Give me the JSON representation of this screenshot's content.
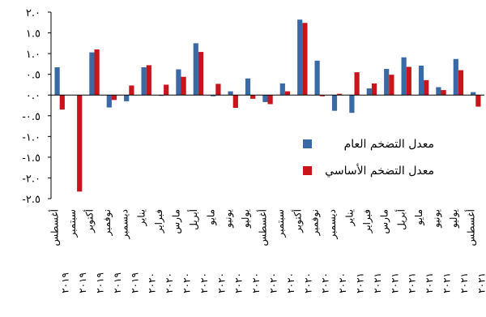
{
  "chart_data": {
    "type": "bar",
    "ylim": [
      -2.5,
      2.0
    ],
    "yticks": [
      2.0,
      1.5,
      1.0,
      0.5,
      0.0,
      -0.5,
      -1.0,
      -1.5,
      -2.0,
      -2.5
    ],
    "ytick_labels": [
      "٢.٠",
      "١.٥",
      "١.٠",
      "٠.٥",
      "٠.٠",
      "-٠.٥",
      "-١.٠",
      "-١.٥",
      "-٢.٠",
      "-٢.٥"
    ],
    "categories": [
      {
        "month": "أغسطس",
        "year": "٢٠١٩"
      },
      {
        "month": "سبتمبر",
        "year": "٢٠١٩"
      },
      {
        "month": "أكتوبر",
        "year": "٢٠١٩"
      },
      {
        "month": "نوفمبر",
        "year": "٢٠١٩"
      },
      {
        "month": "ديسمبر",
        "year": "٢٠١٩"
      },
      {
        "month": "يناير",
        "year": "٢٠٢٠"
      },
      {
        "month": "فبراير",
        "year": "٢٠٢٠"
      },
      {
        "month": "مارس",
        "year": "٢٠٢٠"
      },
      {
        "month": "أبريل",
        "year": "٢٠٢٠"
      },
      {
        "month": "مايو",
        "year": "٢٠٢٠"
      },
      {
        "month": "يونيو",
        "year": "٢٠٢٠"
      },
      {
        "month": "يوليو",
        "year": "٢٠٢٠"
      },
      {
        "month": "أغسطس",
        "year": "٢٠٢٠"
      },
      {
        "month": "سبتمبر",
        "year": "٢٠٢٠"
      },
      {
        "month": "أكتوبر",
        "year": "٢٠٢٠"
      },
      {
        "month": "نوفمبر",
        "year": "٢٠٢٠"
      },
      {
        "month": "ديسمبر",
        "year": "٢٠٢٠"
      },
      {
        "month": "يناير",
        "year": "٢٠٢١"
      },
      {
        "month": "فبراير",
        "year": "٢٠٢١"
      },
      {
        "month": "مارس",
        "year": "٢٠٢١"
      },
      {
        "month": "أبريل",
        "year": "٢٠٢١"
      },
      {
        "month": "مايو",
        "year": "٢٠٢١"
      },
      {
        "month": "يونيو",
        "year": "٢٠٢١"
      },
      {
        "month": "يوليو",
        "year": "٢٠٢١"
      },
      {
        "month": "أغسطس",
        "year": "٢٠٢١"
      }
    ],
    "series": [
      {
        "name": "معدل التضخم العام",
        "color": "#3a6aa5",
        "values": [
          0.67,
          0.0,
          1.03,
          -0.3,
          -0.15,
          0.67,
          -0.02,
          0.62,
          1.25,
          -0.03,
          0.09,
          0.4,
          -0.17,
          0.28,
          1.82,
          0.83,
          -0.38,
          -0.43,
          0.16,
          0.63,
          0.91,
          0.71,
          0.19,
          0.87,
          0.07
        ]
      },
      {
        "name": "معدل التضخم الأساسي",
        "color": "#c8141b",
        "values": [
          -0.35,
          -2.33,
          1.1,
          -0.12,
          0.23,
          0.72,
          0.25,
          0.44,
          1.04,
          0.27,
          -0.31,
          -0.09,
          -0.22,
          0.09,
          1.74,
          -0.03,
          0.03,
          0.55,
          0.28,
          0.49,
          0.68,
          0.36,
          0.12,
          0.6,
          -0.28
        ]
      }
    ],
    "grid": false,
    "legend_position": "right-middle"
  }
}
